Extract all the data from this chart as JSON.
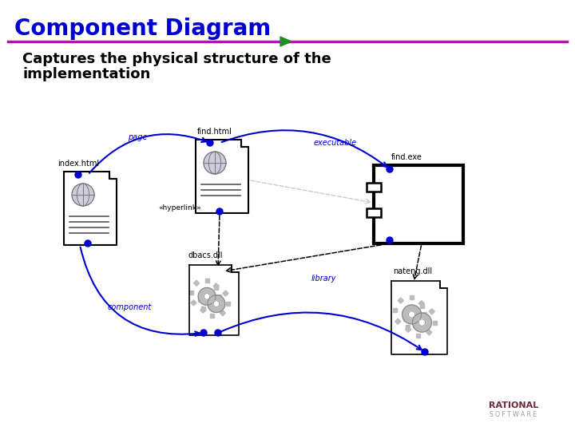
{
  "title": "Component Diagram",
  "subtitle1": "Captures the physical structure of the",
  "subtitle2": "implementation",
  "title_color": "#0000CC",
  "line_color": "#CC00CC",
  "bg_color": "#FFFFFF",
  "rational_color": "#6B2D3E",
  "rational_sub_color": "#999999",
  "blue": "#0000CC",
  "black": "#000000",
  "gray": "#999999",
  "light_gray": "#CCCCCC",
  "green": "#228B22"
}
